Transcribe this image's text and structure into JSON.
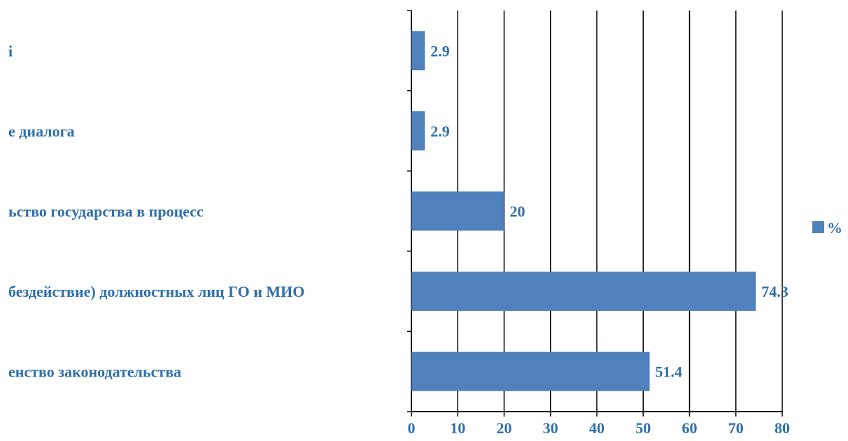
{
  "chart_data": {
    "type": "bar",
    "orientation": "horizontal",
    "categories": [
      "і",
      "е диалога",
      "ьство государства в процесс",
      "бездействие) должностных лиц ГО и МИО",
      "енство законодательства"
    ],
    "series": [
      {
        "name": "%",
        "values": [
          2.9,
          2.9,
          20,
          74.3,
          51.4
        ],
        "color": "#4f81bd"
      }
    ],
    "value_labels": [
      "2.9",
      "2.9",
      "20",
      "74.3",
      "51.4"
    ],
    "xlim": [
      0,
      80
    ],
    "x_ticks": [
      0,
      10,
      20,
      30,
      40,
      50,
      60,
      70,
      80
    ],
    "grid": true,
    "legend_position": "right",
    "text_color": "#2f6fad",
    "grid_color": "#000000",
    "title": "",
    "xlabel": "",
    "ylabel": ""
  }
}
